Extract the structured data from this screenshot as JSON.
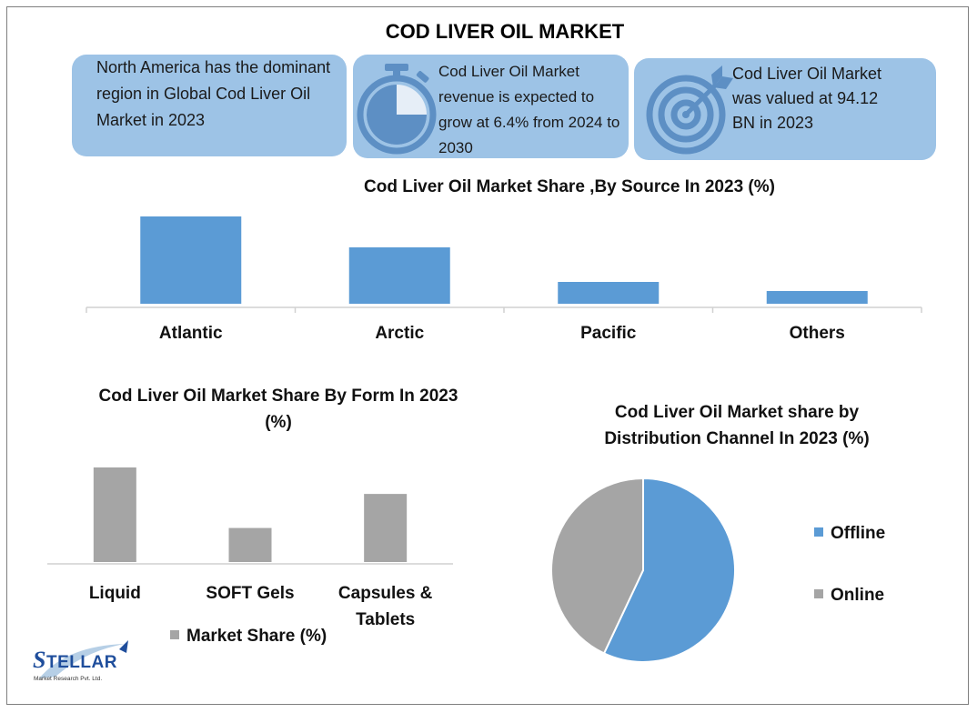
{
  "title": "COD LIVER OIL MARKET",
  "info_boxes": [
    {
      "text": "North America has the dominant region in Global Cod Liver Oil Market in 2023",
      "icon": "none"
    },
    {
      "text": "Cod Liver Oil Market revenue is expected to grow at 6.4% from 2024 to 2030",
      "icon": "stopwatch-icon"
    },
    {
      "text": "Cod Liver Oil Market was valued at 94.12 BN in 2023",
      "icon": "target-icon"
    }
  ],
  "logo": {
    "text": "STELLAR",
    "subtext": "Market Research Pvt. Ltd."
  },
  "colors": {
    "blue": "#5b9bd5",
    "gray": "#a5a5a5",
    "box": "#9dc3e6"
  },
  "chart_data": [
    {
      "type": "bar",
      "title": "Cod Liver Oil Market Share ,By Source In 2023 (%)",
      "categories": [
        "Atlantic",
        "Arctic",
        "Pacific",
        "Others"
      ],
      "values": [
        48,
        31,
        12,
        7
      ],
      "ylim": [
        0,
        50
      ],
      "color": "#5b9bd5",
      "grid": false,
      "legend": "none"
    },
    {
      "type": "bar",
      "title": "Cod Liver Oil Market Share By Form In 2023 (%)",
      "categories": [
        "Liquid",
        "SOFT Gels",
        "Capsules & Tablets"
      ],
      "series": [
        {
          "name": "Market Share (%)",
          "values": [
            50,
            18,
            36
          ]
        }
      ],
      "ylim": [
        0,
        50
      ],
      "color": "#a5a5a5",
      "grid": false,
      "legend": "bottom"
    },
    {
      "type": "pie",
      "title": "Cod Liver Oil Market share by Distribution Channel In 2023 (%)",
      "labels": [
        "Offline",
        "Online"
      ],
      "values": [
        57,
        43
      ],
      "colors": [
        "#5b9bd5",
        "#a5a5a5"
      ],
      "legend": "right"
    }
  ]
}
